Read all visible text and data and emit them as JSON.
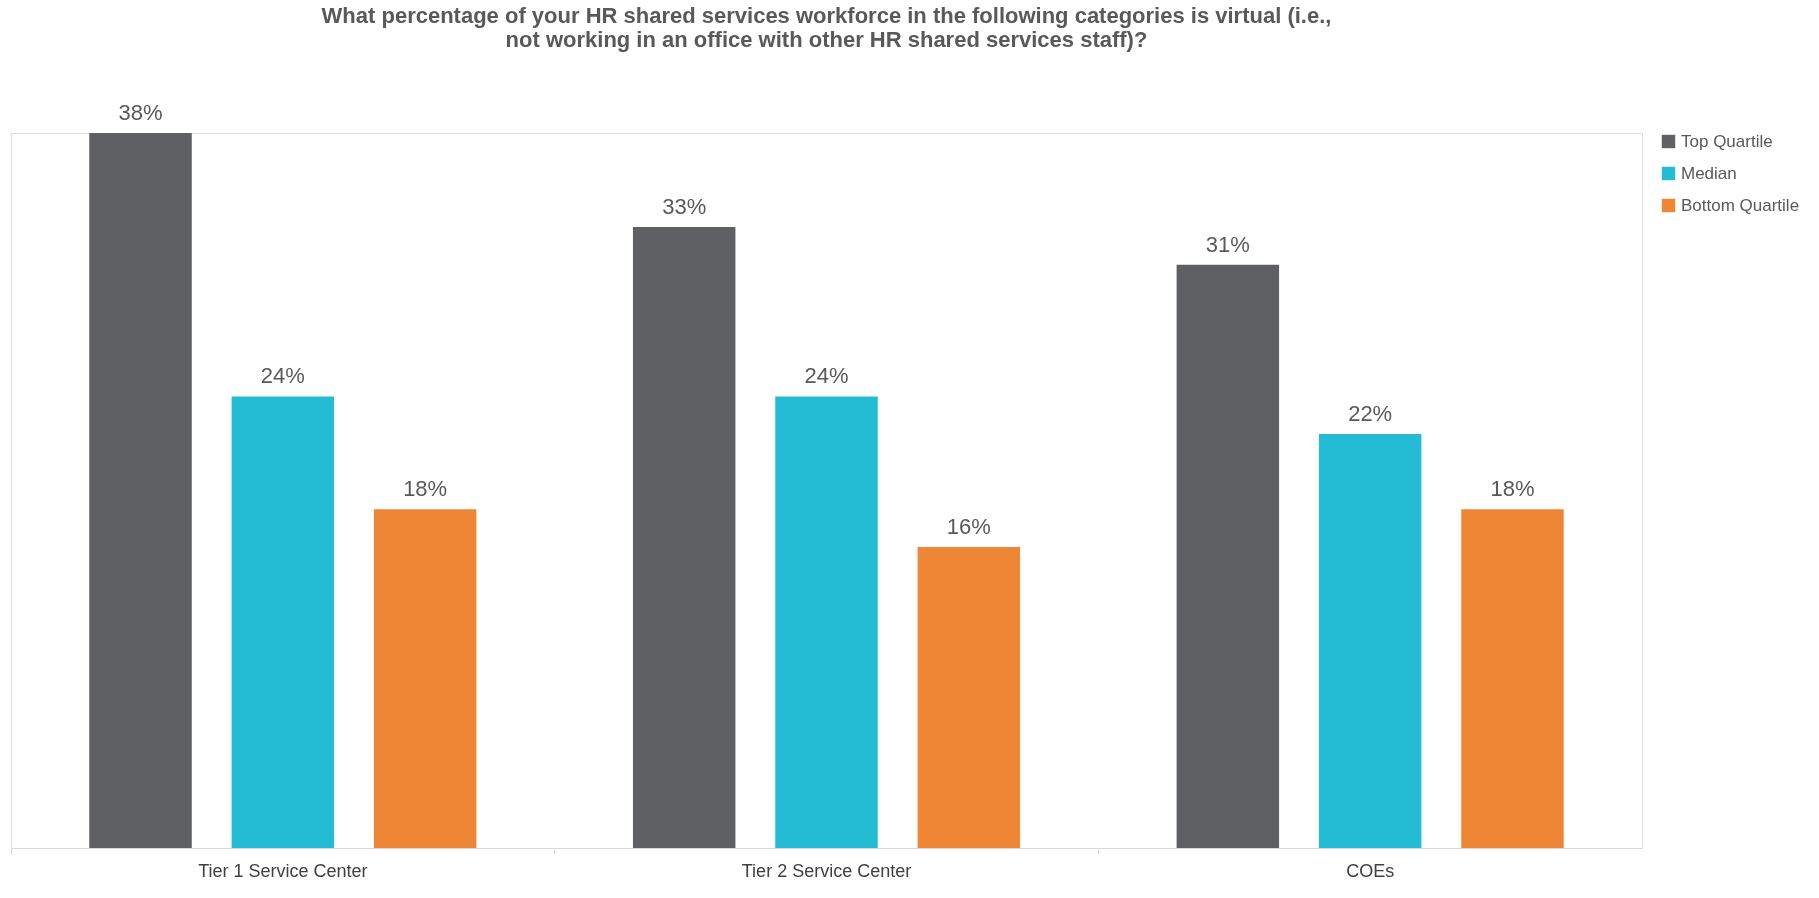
{
  "chart_data": {
    "type": "bar",
    "title": "What percentage of your HR shared services workforce in the following categories is virtual (i.e.,\nnot working in an office with other HR shared services staff)?",
    "categories": [
      "Tier 1 Service Center",
      "Tier 2 Service Center",
      "COEs"
    ],
    "series": [
      {
        "name": "Top Quartile",
        "color": "#5f6064",
        "values": [
          38,
          33,
          31
        ],
        "value_labels": [
          "38%",
          "33%",
          "31%"
        ]
      },
      {
        "name": "Median",
        "color": "#24bcd4",
        "values": [
          24,
          24,
          22
        ],
        "value_labels": [
          "24%",
          "24%",
          "22%"
        ]
      },
      {
        "name": "Bottom Quartile",
        "color": "#ef8636",
        "values": [
          18,
          16,
          18
        ],
        "value_labels": [
          "18%",
          "16%",
          "18%"
        ]
      }
    ],
    "legend": "right",
    "grid": false
  }
}
